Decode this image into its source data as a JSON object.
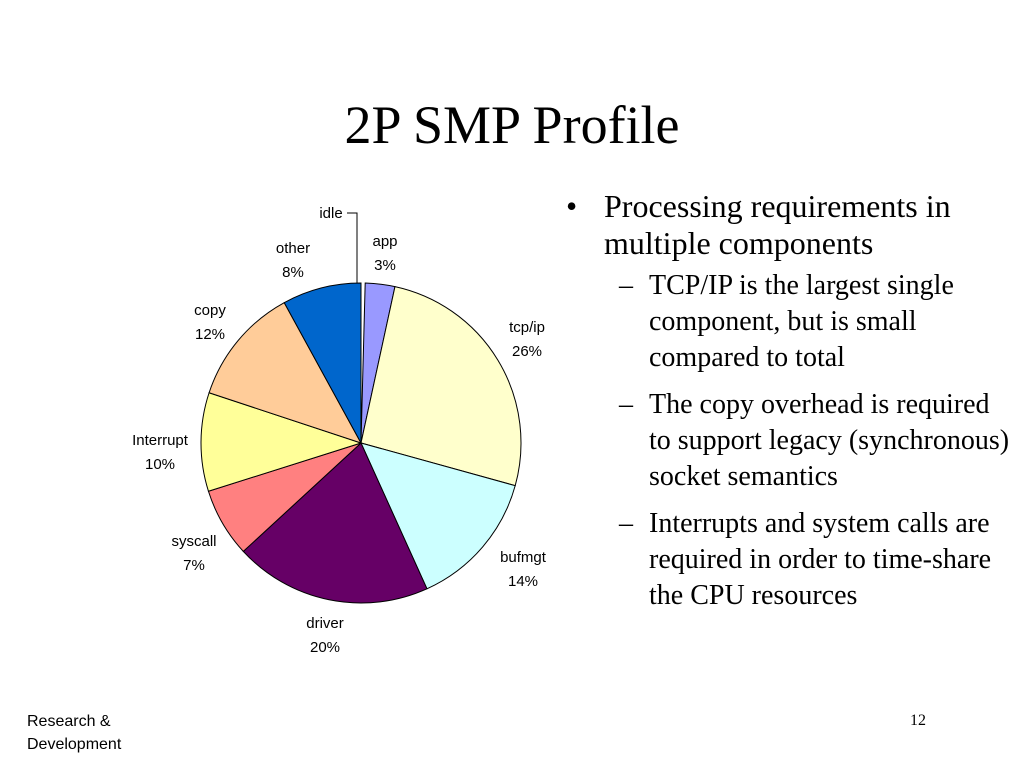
{
  "slide": {
    "title": "2P SMP Profile",
    "footer_line1": "Research &",
    "footer_line2": "Development",
    "page_number": "12"
  },
  "bullets": {
    "main": "Processing requirements in multiple components",
    "main_marker": "•",
    "sub_marker": "–",
    "sub": [
      "TCP/IP is the largest single component, but is small compared to total",
      "The copy overhead is required to support legacy (synchronous) socket semantics",
      "Interrupts and system calls are required in order to time-share the CPU resources"
    ]
  },
  "chart_data": {
    "type": "pie",
    "start": "12 o'clock",
    "direction": "clockwise",
    "slices": [
      {
        "label": "idle",
        "value": 0,
        "pct_label": "",
        "color": "#ffffff"
      },
      {
        "label": "app",
        "value": 3,
        "pct_label": "3%",
        "color": "#9999ff"
      },
      {
        "label": "tcp/ip",
        "value": 26,
        "pct_label": "26%",
        "color": "#ffffcc"
      },
      {
        "label": "bufmgt",
        "value": 14,
        "pct_label": "14%",
        "color": "#ccffff"
      },
      {
        "label": "driver",
        "value": 20,
        "pct_label": "20%",
        "color": "#660066"
      },
      {
        "label": "syscall",
        "value": 7,
        "pct_label": "7%",
        "color": "#ff8080"
      },
      {
        "label": "Interrupt",
        "value": 10,
        "pct_label": "10%",
        "color": "#ffff99"
      },
      {
        "label": "copy",
        "value": 12,
        "pct_label": "12%",
        "color": "#ffcc99"
      },
      {
        "label": "other",
        "value": 8,
        "pct_label": "8%",
        "color": "#0066cc"
      }
    ]
  }
}
